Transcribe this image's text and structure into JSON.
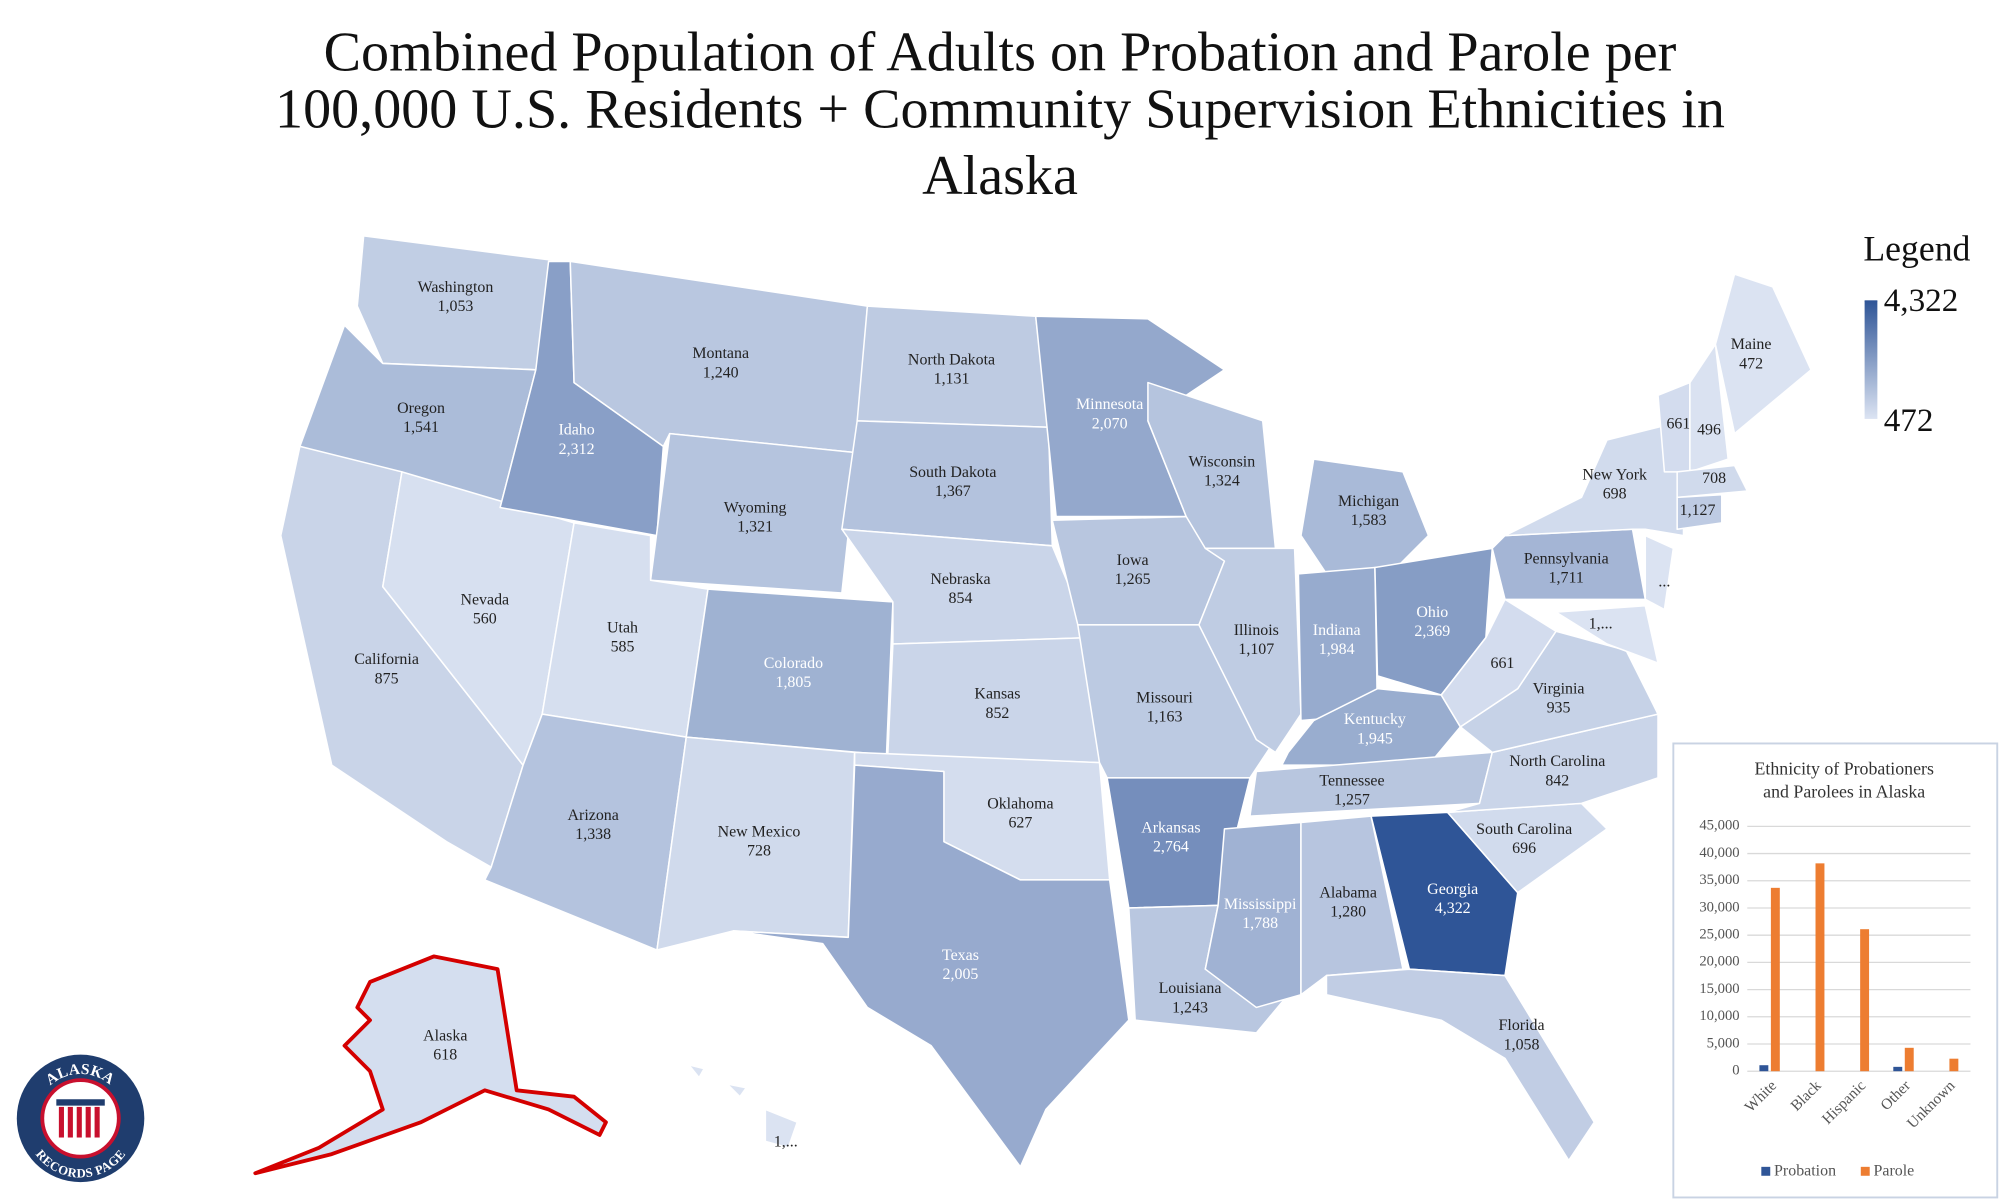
{
  "title_lines": [
    "Combined Population of Adults on Probation and Parole per",
    "100,000 U.S. Residents + Community Supervision Ethnicities in",
    "Alaska"
  ],
  "map": {
    "legend": {
      "title": "Legend",
      "max": {
        "value": 4322,
        "label": "4,322"
      },
      "min": {
        "value": 472,
        "label": "472"
      },
      "colors": [
        "#dbe3f2",
        "#2f5597"
      ]
    },
    "states": [
      {
        "name": "Washington",
        "value": 1053,
        "label": "1,053"
      },
      {
        "name": "Oregon",
        "value": 1541,
        "label": "1,541"
      },
      {
        "name": "California",
        "value": 875,
        "label": "875"
      },
      {
        "name": "Nevada",
        "value": 560,
        "label": "560"
      },
      {
        "name": "Idaho",
        "value": 2312,
        "label": "2,312"
      },
      {
        "name": "Montana",
        "value": 1240,
        "label": "1,240"
      },
      {
        "name": "Wyoming",
        "value": 1321,
        "label": "1,321"
      },
      {
        "name": "Utah",
        "value": 585,
        "label": "585"
      },
      {
        "name": "Arizona",
        "value": 1338,
        "label": "1,338"
      },
      {
        "name": "Colorado",
        "value": 1805,
        "label": "1,805"
      },
      {
        "name": "New Mexico",
        "value": 728,
        "label": "728"
      },
      {
        "name": "North Dakota",
        "value": 1131,
        "label": "1,131"
      },
      {
        "name": "South Dakota",
        "value": 1367,
        "label": "1,367"
      },
      {
        "name": "Nebraska",
        "value": 854,
        "label": "854"
      },
      {
        "name": "Kansas",
        "value": 852,
        "label": "852"
      },
      {
        "name": "Oklahoma",
        "value": 627,
        "label": "627"
      },
      {
        "name": "Texas",
        "value": 2005,
        "label": "2,005"
      },
      {
        "name": "Minnesota",
        "value": 2070,
        "label": "2,070"
      },
      {
        "name": "Iowa",
        "value": 1265,
        "label": "1,265"
      },
      {
        "name": "Missouri",
        "value": 1163,
        "label": "1,163"
      },
      {
        "name": "Arkansas",
        "value": 2764,
        "label": "2,764"
      },
      {
        "name": "Louisiana",
        "value": 1243,
        "label": "1,243"
      },
      {
        "name": "Wisconsin",
        "value": 1324,
        "label": "1,324"
      },
      {
        "name": "Illinois",
        "value": 1107,
        "label": "1,107"
      },
      {
        "name": "Michigan",
        "value": 1583,
        "label": "1,583"
      },
      {
        "name": "Indiana",
        "value": 1984,
        "label": "1,984"
      },
      {
        "name": "Ohio",
        "value": 2369,
        "label": "2,369"
      },
      {
        "name": "Kentucky",
        "value": 1945,
        "label": "1,945"
      },
      {
        "name": "Tennessee",
        "value": 1257,
        "label": "1,257"
      },
      {
        "name": "Mississippi",
        "value": 1788,
        "label": "1,788"
      },
      {
        "name": "Alabama",
        "value": 1280,
        "label": "1,280"
      },
      {
        "name": "Georgia",
        "value": 4322,
        "label": "4,322"
      },
      {
        "name": "Florida",
        "value": 1058,
        "label": "1,058"
      },
      {
        "name": "South Carolina",
        "value": 696,
        "label": "696"
      },
      {
        "name": "North Carolina",
        "value": 842,
        "label": "842"
      },
      {
        "name": "Virginia",
        "value": 935,
        "label": "935"
      },
      {
        "value": 661,
        "label": "661"
      },
      {
        "name": "Pennsylvania",
        "value": 1711,
        "label": "1,711"
      },
      {
        "name": "New York",
        "value": 698,
        "label": "698"
      },
      {
        "label": "1,..."
      },
      {
        "label": "..."
      },
      {
        "value": 661,
        "label": "661"
      },
      {
        "value": 496,
        "label": "496"
      },
      {
        "name": "Maine",
        "value": 472,
        "label": "472"
      },
      {
        "value": 708,
        "label": "708"
      },
      {
        "value": 1127,
        "label": "1,127"
      },
      {
        "label": "1,..."
      },
      {
        "name": "Alaska",
        "value": 618,
        "label": "618"
      }
    ]
  },
  "logo": {
    "top": "ALASKA",
    "bottom": "RECORDS PAGE"
  },
  "chart_data": {
    "type": "bar",
    "title_lines": [
      "Ethnicity of Probationers",
      "and Parolees in Alaska"
    ],
    "categories": [
      "White",
      "Black",
      "Hispanic",
      "Other",
      "Unknown"
    ],
    "series": [
      {
        "name": "Probation",
        "color": "#2f5597",
        "values": [
          1100,
          0,
          0,
          800,
          0
        ]
      },
      {
        "name": "Parole",
        "color": "#ed7d31",
        "values": [
          33700,
          38200,
          26100,
          4300,
          2300
        ]
      }
    ],
    "ylim": [
      0,
      45000
    ],
    "yticks": [
      0,
      {
        "value": 5000,
        "label": "5,000"
      },
      {
        "value": 10000,
        "label": "10,000"
      },
      {
        "value": 15000,
        "label": "15,000"
      },
      {
        "value": 20000,
        "label": "20,000"
      },
      {
        "value": 25000,
        "label": "25,000"
      },
      {
        "value": 30000,
        "label": "30,000"
      },
      {
        "value": 35000,
        "label": "35,000"
      },
      {
        "value": 40000,
        "label": "40,000"
      },
      {
        "value": 45000,
        "label": "45,000"
      }
    ],
    "grid": true
  }
}
